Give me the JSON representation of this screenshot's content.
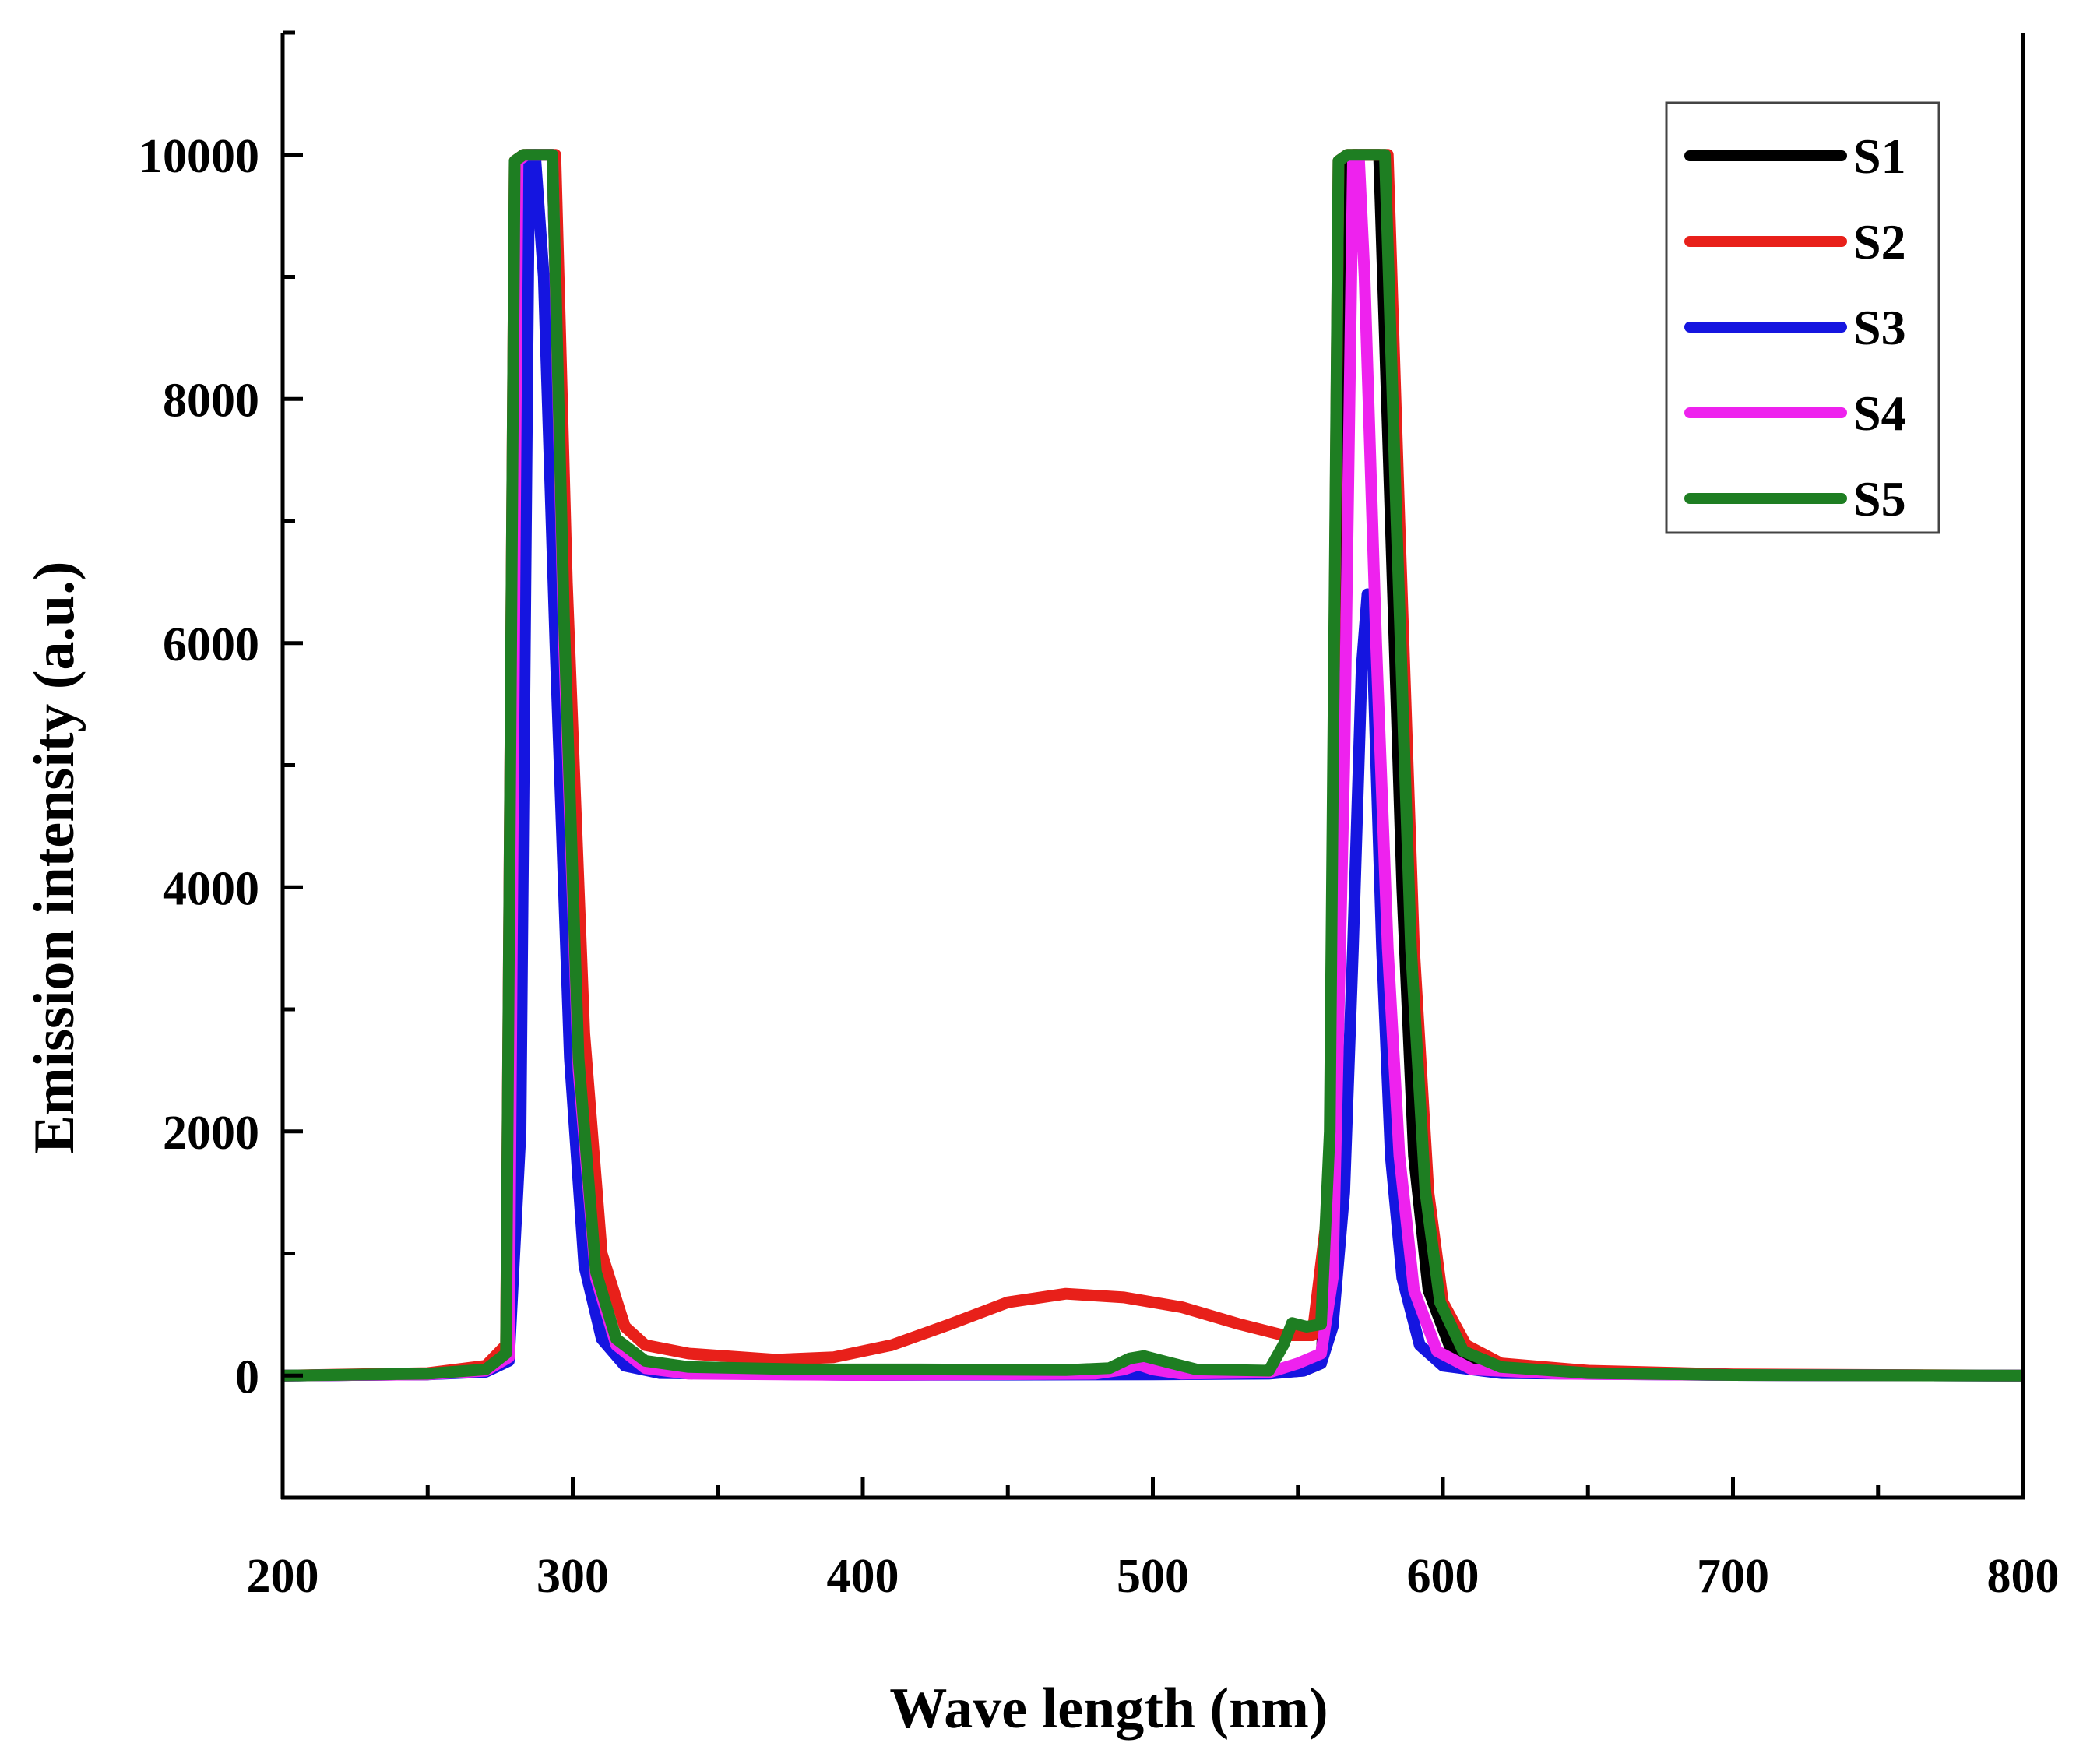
{
  "chart_data": {
    "type": "line",
    "title": "",
    "xlabel": "Wave length (nm)",
    "ylabel": "Emission intensity (a.u.)",
    "xlim": [
      200,
      800
    ],
    "ylim": [
      -1000,
      11000
    ],
    "x_ticks": [
      200,
      300,
      400,
      500,
      600,
      700,
      800
    ],
    "x_tick_labels": [
      "200",
      "300",
      "400",
      "500",
      "600",
      "700",
      "800"
    ],
    "y_ticks": [
      0,
      2000,
      4000,
      6000,
      8000,
      10000
    ],
    "y_tick_labels": [
      "0",
      "2000",
      "4000",
      "6000",
      "8000",
      "10000"
    ],
    "grid": false,
    "legend_position": "top-right",
    "series": [
      {
        "name": "S1",
        "color": "#000000",
        "points": [
          [
            200,
            0
          ],
          [
            250,
            10
          ],
          [
            270,
            40
          ],
          [
            278,
            150
          ],
          [
            281,
            9950
          ],
          [
            284,
            10000
          ],
          [
            293,
            10000
          ],
          [
            297,
            6000
          ],
          [
            302,
            2500
          ],
          [
            308,
            800
          ],
          [
            315,
            250
          ],
          [
            325,
            60
          ],
          [
            340,
            20
          ],
          [
            400,
            10
          ],
          [
            500,
            15
          ],
          [
            540,
            20
          ],
          [
            552,
            40
          ],
          [
            558,
            100
          ],
          [
            563,
            2000
          ],
          [
            566,
            9950
          ],
          [
            569,
            10000
          ],
          [
            578,
            10000
          ],
          [
            582,
            7000
          ],
          [
            586,
            4000
          ],
          [
            590,
            1800
          ],
          [
            595,
            700
          ],
          [
            603,
            200
          ],
          [
            615,
            60
          ],
          [
            640,
            20
          ],
          [
            700,
            5
          ],
          [
            800,
            0
          ]
        ]
      },
      {
        "name": "S2",
        "color": "#e8201a",
        "points": [
          [
            200,
            0
          ],
          [
            250,
            20
          ],
          [
            270,
            80
          ],
          [
            277,
            250
          ],
          [
            280,
            9950
          ],
          [
            283,
            10000
          ],
          [
            294,
            10000
          ],
          [
            298,
            6500
          ],
          [
            304,
            2800
          ],
          [
            310,
            1000
          ],
          [
            318,
            400
          ],
          [
            325,
            250
          ],
          [
            340,
            180
          ],
          [
            370,
            130
          ],
          [
            390,
            150
          ],
          [
            410,
            250
          ],
          [
            430,
            420
          ],
          [
            450,
            600
          ],
          [
            470,
            670
          ],
          [
            490,
            640
          ],
          [
            510,
            560
          ],
          [
            530,
            420
          ],
          [
            545,
            330
          ],
          [
            555,
            330
          ],
          [
            561,
            1500
          ],
          [
            564,
            9950
          ],
          [
            567,
            10000
          ],
          [
            581,
            10000
          ],
          [
            585,
            7000
          ],
          [
            590,
            3500
          ],
          [
            595,
            1500
          ],
          [
            600,
            600
          ],
          [
            608,
            250
          ],
          [
            620,
            100
          ],
          [
            650,
            40
          ],
          [
            700,
            10
          ],
          [
            800,
            0
          ]
        ]
      },
      {
        "name": "S3",
        "color": "#1515e0",
        "points": [
          [
            200,
            0
          ],
          [
            250,
            10
          ],
          [
            270,
            30
          ],
          [
            278,
            120
          ],
          [
            282,
            2000
          ],
          [
            285,
            9950
          ],
          [
            287,
            10000
          ],
          [
            290,
            9000
          ],
          [
            294,
            6000
          ],
          [
            299,
            2600
          ],
          [
            304,
            900
          ],
          [
            310,
            300
          ],
          [
            318,
            80
          ],
          [
            330,
            20
          ],
          [
            400,
            5
          ],
          [
            500,
            10
          ],
          [
            540,
            15
          ],
          [
            552,
            40
          ],
          [
            558,
            100
          ],
          [
            562,
            400
          ],
          [
            566,
            1500
          ],
          [
            569,
            3500
          ],
          [
            572,
            5800
          ],
          [
            574,
            6400
          ],
          [
            576,
            5800
          ],
          [
            579,
            3500
          ],
          [
            582,
            1800
          ],
          [
            586,
            800
          ],
          [
            592,
            250
          ],
          [
            600,
            80
          ],
          [
            620,
            20
          ],
          [
            700,
            5
          ],
          [
            800,
            0
          ]
        ]
      },
      {
        "name": "S4",
        "color": "#ee22ee",
        "points": [
          [
            200,
            0
          ],
          [
            250,
            10
          ],
          [
            270,
            40
          ],
          [
            278,
            150
          ],
          [
            281,
            9950
          ],
          [
            284,
            10000
          ],
          [
            293,
            10000
          ],
          [
            297,
            6000
          ],
          [
            302,
            2500
          ],
          [
            308,
            800
          ],
          [
            315,
            250
          ],
          [
            325,
            60
          ],
          [
            340,
            15
          ],
          [
            400,
            5
          ],
          [
            480,
            15
          ],
          [
            490,
            50
          ],
          [
            495,
            90
          ],
          [
            500,
            50
          ],
          [
            510,
            15
          ],
          [
            540,
            25
          ],
          [
            550,
            100
          ],
          [
            558,
            180
          ],
          [
            562,
            800
          ],
          [
            566,
            5000
          ],
          [
            569,
            9950
          ],
          [
            571,
            10000
          ],
          [
            573,
            9000
          ],
          [
            577,
            6000
          ],
          [
            581,
            3500
          ],
          [
            585,
            1800
          ],
          [
            590,
            700
          ],
          [
            598,
            200
          ],
          [
            610,
            50
          ],
          [
            640,
            15
          ],
          [
            700,
            5
          ],
          [
            800,
            0
          ]
        ]
      },
      {
        "name": "S5",
        "color": "#1e7e22",
        "points": [
          [
            200,
            0
          ],
          [
            250,
            15
          ],
          [
            270,
            50
          ],
          [
            277,
            180
          ],
          [
            280,
            9950
          ],
          [
            283,
            10000
          ],
          [
            293,
            10000
          ],
          [
            297,
            6200
          ],
          [
            302,
            2600
          ],
          [
            308,
            850
          ],
          [
            315,
            300
          ],
          [
            325,
            120
          ],
          [
            340,
            70
          ],
          [
            380,
            50
          ],
          [
            420,
            50
          ],
          [
            470,
            45
          ],
          [
            485,
            60
          ],
          [
            492,
            140
          ],
          [
            497,
            160
          ],
          [
            505,
            110
          ],
          [
            515,
            50
          ],
          [
            540,
            40
          ],
          [
            545,
            250
          ],
          [
            548,
            430
          ],
          [
            553,
            400
          ],
          [
            558,
            420
          ],
          [
            561,
            2000
          ],
          [
            564,
            9950
          ],
          [
            567,
            10000
          ],
          [
            580,
            10000
          ],
          [
            584,
            7000
          ],
          [
            589,
            3500
          ],
          [
            594,
            1500
          ],
          [
            599,
            600
          ],
          [
            607,
            200
          ],
          [
            620,
            70
          ],
          [
            650,
            20
          ],
          [
            700,
            5
          ],
          [
            800,
            0
          ]
        ]
      }
    ]
  }
}
